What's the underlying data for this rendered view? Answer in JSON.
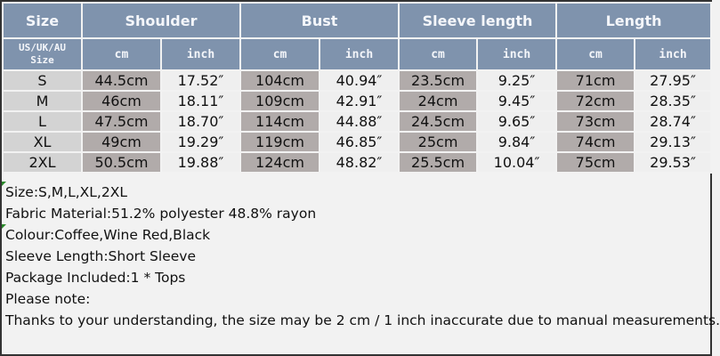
{
  "table": {
    "headers": [
      "Size",
      "Shoulder",
      "Bust",
      "Sleeve length",
      "Length"
    ],
    "size_subheader": [
      "US/UK/AU",
      "Size"
    ],
    "unit_cm": "cm",
    "unit_inch": "inch",
    "rows": [
      {
        "size": "S",
        "values": [
          "44.5cm",
          "17.52″",
          "104cm",
          "40.94″",
          "23.5cm",
          "9.25″",
          "71cm",
          "27.95″"
        ]
      },
      {
        "size": "M",
        "values": [
          "46cm",
          "18.11″",
          "109cm",
          "42.91″",
          "24cm",
          "9.45″",
          "72cm",
          "28.35″"
        ]
      },
      {
        "size": "L",
        "values": [
          "47.5cm",
          "18.70″",
          "114cm",
          "44.88″",
          "24.5cm",
          "9.65″",
          "73cm",
          "28.74″"
        ]
      },
      {
        "size": "XL",
        "values": [
          "49cm",
          "19.29″",
          "119cm",
          "46.85″",
          "25cm",
          "9.84″",
          "74cm",
          "29.13″"
        ]
      },
      {
        "size": "2XL",
        "values": [
          "50.5cm",
          "19.88″",
          "124cm",
          "48.82″",
          "25.5cm",
          "10.04″",
          "75cm",
          "29.53″"
        ]
      }
    ]
  },
  "notes": [
    "Size:S,M,L,XL,2XL",
    "Fabric Material:51.2% polyester 48.8% rayon",
    "Colour:Coffee,Wine Red,Black",
    "Sleeve Length:Short Sleeve",
    "Package Included:1 * Tops",
    "Please note:",
    "Thanks to your understanding, the size may be 2 cm / 1 inch inaccurate due to manual measurements."
  ],
  "colors": {
    "header": "#7f93ad",
    "size_cell": "#d3d3d3",
    "cm_cell": "#b1abaa",
    "inch_cell": "#efefef"
  }
}
